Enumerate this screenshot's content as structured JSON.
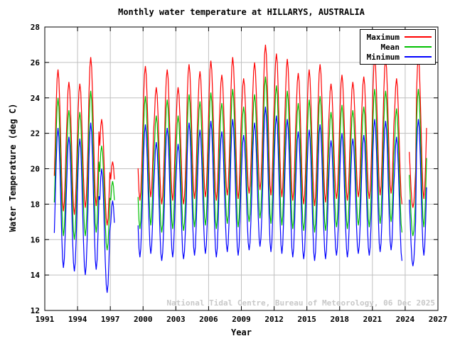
{
  "chart_data": {
    "type": "line",
    "title": "Monthly water temperature at HILLARYS, AUSTRALIA",
    "xlabel": "Year",
    "ylabel": "Water Temperature (deg C)",
    "watermark": "National Tidal Centre, Bureau of Meteorology, 06 Dec 2025",
    "xlim": [
      1991,
      2027
    ],
    "ylim": [
      12,
      28
    ],
    "x_ticks": [
      1991,
      1994,
      1997,
      2000,
      2003,
      2006,
      2009,
      2012,
      2015,
      2018,
      2021,
      2024,
      2027
    ],
    "y_ticks": [
      12,
      14,
      16,
      18,
      20,
      22,
      24,
      26,
      28
    ],
    "grid": true,
    "legend_position": "top-right",
    "colors": {
      "axis": "#000000",
      "grid": "#c0c0c0",
      "watermark": "#c8c8c8"
    },
    "monthly_shape": [
      0.75,
      0.933,
      1.0,
      0.933,
      0.75,
      0.5,
      0.25,
      0.067,
      0.0,
      0.067,
      0.25,
      0.5
    ],
    "series": [
      {
        "name": "Maximum",
        "key": "max",
        "color": "#ff0000"
      },
      {
        "name": "Mean",
        "key": "mean",
        "color": "#00c000"
      },
      {
        "name": "Minimum",
        "key": "min",
        "color": "#0000ff"
      }
    ],
    "annual": [
      {
        "year": 1991,
        "months": [
          10,
          11
        ],
        "max": [
          25.0,
          17.8
        ],
        "mean": [
          23.5,
          16.3
        ],
        "min": [
          22.0,
          14.5
        ]
      },
      {
        "year": 1992,
        "max": [
          25.6,
          17.6
        ],
        "mean": [
          24.0,
          16.2
        ],
        "min": [
          22.3,
          14.4
        ]
      },
      {
        "year": 1993,
        "max": [
          24.9,
          17.4
        ],
        "mean": [
          23.3,
          16.0
        ],
        "min": [
          21.8,
          14.2
        ]
      },
      {
        "year": 1994,
        "max": [
          24.8,
          17.8
        ],
        "mean": [
          23.2,
          16.2
        ],
        "min": [
          21.7,
          14.0
        ]
      },
      {
        "year": 1995,
        "max": [
          26.3,
          17.9
        ],
        "mean": [
          24.4,
          16.4
        ],
        "min": [
          22.6,
          14.3
        ]
      },
      {
        "year": 1996,
        "max": [
          22.8,
          16.8
        ],
        "mean": [
          21.3,
          15.4
        ],
        "min": [
          20.0,
          13.0
        ]
      },
      {
        "year": 1997,
        "months": [
          0,
          1,
          2,
          3,
          4
        ],
        "max": [
          20.4,
          16.4
        ],
        "mean": [
          19.3,
          15.0
        ],
        "min": [
          18.2,
          13.2
        ]
      },
      {
        "year": 1999,
        "months": [
          6,
          7,
          8,
          9,
          10,
          11
        ],
        "max": [
          25.5,
          18.2
        ],
        "mean": [
          23.8,
          16.6
        ],
        "min": [
          22.2,
          15.0
        ]
      },
      {
        "year": 2000,
        "max": [
          25.8,
          18.4
        ],
        "mean": [
          24.1,
          16.8
        ],
        "min": [
          22.5,
          15.2
        ]
      },
      {
        "year": 2001,
        "max": [
          24.6,
          18.0
        ],
        "mean": [
          23.0,
          16.4
        ],
        "min": [
          21.5,
          14.8
        ]
      },
      {
        "year": 2002,
        "max": [
          25.6,
          18.2
        ],
        "mean": [
          23.9,
          16.6
        ],
        "min": [
          22.3,
          15.0
        ]
      },
      {
        "year": 2003,
        "max": [
          24.6,
          18.0
        ],
        "mean": [
          23.0,
          16.5
        ],
        "min": [
          21.4,
          14.9
        ]
      },
      {
        "year": 2004,
        "max": [
          25.9,
          18.3
        ],
        "mean": [
          24.2,
          16.7
        ],
        "min": [
          22.6,
          15.1
        ]
      },
      {
        "year": 2005,
        "max": [
          25.5,
          18.4
        ],
        "mean": [
          23.8,
          16.8
        ],
        "min": [
          22.2,
          15.2
        ]
      },
      {
        "year": 2006,
        "max": [
          26.1,
          18.2
        ],
        "mean": [
          24.3,
          16.6
        ],
        "min": [
          22.7,
          15.0
        ]
      },
      {
        "year": 2007,
        "max": [
          25.3,
          18.5
        ],
        "mean": [
          23.7,
          16.9
        ],
        "min": [
          22.1,
          15.3
        ]
      },
      {
        "year": 2008,
        "max": [
          26.3,
          18.3
        ],
        "mean": [
          24.5,
          16.7
        ],
        "min": [
          22.8,
          15.1
        ]
      },
      {
        "year": 2009,
        "max": [
          25.1,
          18.6
        ],
        "mean": [
          23.5,
          17.0
        ],
        "min": [
          21.9,
          15.4
        ]
      },
      {
        "year": 2010,
        "max": [
          26.0,
          18.8
        ],
        "mean": [
          24.2,
          17.2
        ],
        "min": [
          22.6,
          15.6
        ]
      },
      {
        "year": 2011,
        "max": [
          27.0,
          18.5
        ],
        "mean": [
          25.2,
          16.9
        ],
        "min": [
          23.5,
          15.3
        ]
      },
      {
        "year": 2012,
        "max": [
          26.5,
          18.4
        ],
        "mean": [
          24.7,
          16.8
        ],
        "min": [
          23.0,
          15.2
        ]
      },
      {
        "year": 2013,
        "max": [
          26.2,
          18.2
        ],
        "mean": [
          24.4,
          16.6
        ],
        "min": [
          22.8,
          15.0
        ]
      },
      {
        "year": 2014,
        "max": [
          25.4,
          18.0
        ],
        "mean": [
          23.7,
          16.5
        ],
        "min": [
          22.1,
          14.9
        ]
      },
      {
        "year": 2015,
        "max": [
          25.6,
          17.9
        ],
        "mean": [
          23.9,
          16.4
        ],
        "min": [
          22.2,
          14.8
        ]
      },
      {
        "year": 2016,
        "max": [
          25.9,
          18.1
        ],
        "mean": [
          24.1,
          16.5
        ],
        "min": [
          22.5,
          14.9
        ]
      },
      {
        "year": 2017,
        "max": [
          24.8,
          18.3
        ],
        "mean": [
          23.2,
          16.7
        ],
        "min": [
          21.6,
          15.1
        ]
      },
      {
        "year": 2018,
        "max": [
          25.3,
          18.2
        ],
        "mean": [
          23.6,
          16.6
        ],
        "min": [
          22.0,
          15.0
        ]
      },
      {
        "year": 2019,
        "max": [
          24.9,
          18.4
        ],
        "mean": [
          23.3,
          16.8
        ],
        "min": [
          21.7,
          15.2
        ]
      },
      {
        "year": 2020,
        "max": [
          25.2,
          18.3
        ],
        "mean": [
          23.5,
          16.7
        ],
        "min": [
          21.9,
          15.1
        ]
      },
      {
        "year": 2021,
        "max": [
          26.3,
          18.5
        ],
        "mean": [
          24.5,
          16.9
        ],
        "min": [
          22.8,
          15.3
        ]
      },
      {
        "year": 2022,
        "max": [
          26.2,
          18.6
        ],
        "mean": [
          24.4,
          17.0
        ],
        "min": [
          22.7,
          15.4
        ]
      },
      {
        "year": 2023,
        "months": [
          0,
          1,
          2,
          3,
          4,
          5,
          6,
          7,
          8
        ],
        "max": [
          25.1,
          18.0
        ],
        "mean": [
          23.4,
          16.4
        ],
        "min": [
          21.8,
          14.8
        ]
      },
      {
        "year": 2024,
        "months": [
          4,
          5,
          6,
          7,
          8,
          9,
          10,
          11
        ],
        "max": [
          22.0,
          17.8
        ],
        "mean": [
          20.8,
          16.2
        ],
        "min": [
          19.5,
          14.5
        ]
      },
      {
        "year": 2025,
        "max": [
          26.3,
          18.3
        ],
        "mean": [
          24.5,
          16.7
        ],
        "min": [
          22.8,
          15.1
        ]
      }
    ]
  }
}
